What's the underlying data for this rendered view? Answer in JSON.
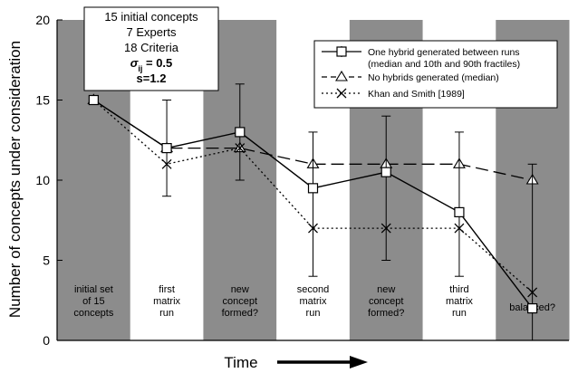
{
  "chart_data": {
    "type": "line",
    "title": "",
    "xlabel": "Time",
    "ylabel": "Number of concepts under consideration",
    "ylim": [
      0,
      20
    ],
    "yticks": [
      0,
      5,
      10,
      15,
      20
    ],
    "grid": false,
    "legend_position": "top-right",
    "stages": [
      {
        "label": "initial set of 15 concepts",
        "lines": [
          "initial set",
          "of 15",
          "concepts"
        ],
        "shade": "gray"
      },
      {
        "label": "first matrix run",
        "lines": [
          "first",
          "matrix",
          "run"
        ],
        "shade": "white"
      },
      {
        "label": "new concept formed?",
        "lines": [
          "new",
          "concept",
          "formed?"
        ],
        "shade": "gray"
      },
      {
        "label": "second matrix run",
        "lines": [
          "second",
          "matrix",
          "run"
        ],
        "shade": "white"
      },
      {
        "label": "new concept formed?",
        "lines": [
          "new",
          "concept",
          "formed?"
        ],
        "shade": "gray"
      },
      {
        "label": "third matrix run",
        "lines": [
          "third",
          "matrix",
          "run"
        ],
        "shade": "white"
      },
      {
        "label": "balanced?",
        "lines": [
          "balanced?"
        ],
        "shade": "gray"
      }
    ],
    "series": [
      {
        "name": "One hybrid generated between runs (median and 10th and 90th fractiles)",
        "legend_lines": [
          "One hybrid generated between runs",
          "(median and 10th and 90th fractiles)"
        ],
        "marker": "square",
        "line_style": "solid",
        "x": [
          0,
          1,
          2,
          3,
          4,
          5,
          6
        ],
        "values": [
          15,
          12,
          13,
          9.5,
          10.5,
          8,
          2
        ],
        "low": [
          15,
          9,
          10,
          4,
          5,
          4,
          0
        ],
        "high": [
          15,
          15,
          16,
          13,
          14,
          13,
          11
        ]
      },
      {
        "name": "No hybrids generated (median)",
        "legend_lines": [
          "No hybrids generated (median)"
        ],
        "marker": "triangle",
        "line_style": "dashed",
        "x": [
          0,
          1,
          2,
          3,
          4,
          5,
          6
        ],
        "values": [
          15,
          12,
          12,
          11,
          11,
          11,
          10
        ]
      },
      {
        "name": "Khan and Smith [1989]",
        "legend_lines": [
          "Khan and Smith [1989]"
        ],
        "marker": "x",
        "line_style": "dotted",
        "x": [
          0,
          1,
          2,
          3,
          4,
          5,
          6
        ],
        "values": [
          15,
          11,
          12,
          7,
          7,
          7,
          3
        ]
      }
    ],
    "annotations": [
      {
        "text": "15 initial concepts"
      },
      {
        "text": "7 Experts"
      },
      {
        "text": "18 Criteria"
      },
      {
        "text": "σij = 0.5",
        "symbol": "σ",
        "subscript": "ij",
        "rest": " = 0.5"
      },
      {
        "text": "s=1.2"
      }
    ],
    "colors": {
      "band_gray": "#8c8c8c",
      "band_white": "#ffffff",
      "line": "#000000"
    }
  }
}
